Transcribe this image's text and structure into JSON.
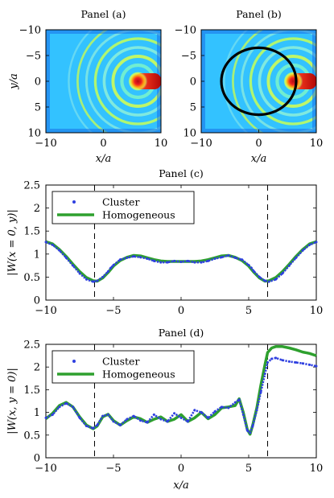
{
  "chart_data": [
    {
      "id": "a",
      "type": "heatmap",
      "title": "Panel (a)",
      "xlabel": "x/a",
      "ylabel": "y/a",
      "xlim": [
        -10,
        10
      ],
      "ylim": [
        -10,
        10
      ],
      "y_direction": "reversed",
      "xticks": [
        "−10",
        "0",
        "10"
      ],
      "yticks": [
        "−10",
        "−5",
        "0",
        "5",
        "10"
      ],
      "colormap": "jet",
      "source_x": 6,
      "scatterer_boundary": "cluster"
    },
    {
      "id": "b",
      "type": "heatmap",
      "title": "Panel (b)",
      "xlabel": "x/a",
      "ylabel": "",
      "xlim": [
        -10,
        10
      ],
      "ylim": [
        -10,
        10
      ],
      "y_direction": "reversed",
      "xticks": [
        "−10",
        "0",
        "10"
      ],
      "yticks": [
        "−10",
        "−5",
        "0",
        "5",
        "10"
      ],
      "colormap": "jet",
      "source_x": 6,
      "overlay": {
        "shape": "circle",
        "center": [
          0,
          0
        ],
        "radius": 6.5,
        "color": "#000000"
      }
    },
    {
      "id": "c",
      "type": "line",
      "title": "Panel (c)",
      "xlabel": "",
      "ylabel": "|W(x = 0, y)|",
      "xlim": [
        -10,
        10
      ],
      "ylim": [
        0,
        2.5
      ],
      "xticks": [
        "−10",
        "−5",
        "0",
        "5",
        "10"
      ],
      "yticks": [
        "0",
        "0.5",
        "1",
        "1.5",
        "2",
        "2.5"
      ],
      "legend_position": "top-left",
      "vlines": [
        -6.4,
        6.4
      ],
      "series": [
        {
          "name": "Cluster",
          "style": "dots",
          "color": "#2e3fe0",
          "x": [
            -10,
            -9.5,
            -9,
            -8.5,
            -8,
            -7.5,
            -7,
            -6.5,
            -6.2,
            -5.8,
            -5.4,
            -5.2,
            -5,
            -4.5,
            -4,
            -3.5,
            -3,
            -2.5,
            -2,
            -1.5,
            -1,
            -0.5,
            0,
            0.5,
            1,
            1.5,
            2,
            2.5,
            3,
            3.5,
            4,
            4.5,
            5,
            5.2,
            5.4,
            5.8,
            6.2,
            6.5,
            7,
            7.5,
            8,
            8.5,
            9,
            9.5,
            10
          ],
          "y": [
            1.26,
            1.2,
            1.08,
            0.92,
            0.75,
            0.58,
            0.45,
            0.4,
            0.42,
            0.5,
            0.62,
            0.7,
            0.76,
            0.88,
            0.92,
            0.95,
            0.93,
            0.9,
            0.85,
            0.82,
            0.82,
            0.85,
            0.83,
            0.85,
            0.82,
            0.82,
            0.85,
            0.9,
            0.93,
            0.97,
            0.92,
            0.88,
            0.76,
            0.7,
            0.62,
            0.5,
            0.42,
            0.4,
            0.45,
            0.58,
            0.75,
            0.92,
            1.08,
            1.2,
            1.26
          ]
        },
        {
          "name": "Homogeneous",
          "style": "line",
          "color": "#2ea02e",
          "x": [
            -10,
            -9.5,
            -9,
            -8.5,
            -8,
            -7.5,
            -7,
            -6.5,
            -6.2,
            -5.8,
            -5.4,
            -5,
            -4.5,
            -4,
            -3.5,
            -3,
            -2.5,
            -2,
            -1.5,
            -1,
            -0.5,
            0,
            0.5,
            1,
            1.5,
            2,
            2.5,
            3,
            3.5,
            4,
            4.5,
            5,
            5.4,
            5.8,
            6.2,
            6.5,
            7,
            7.5,
            8,
            8.5,
            9,
            9.5,
            10
          ],
          "y": [
            1.27,
            1.22,
            1.1,
            0.95,
            0.78,
            0.62,
            0.49,
            0.42,
            0.41,
            0.48,
            0.6,
            0.74,
            0.86,
            0.93,
            0.97,
            0.96,
            0.92,
            0.88,
            0.85,
            0.84,
            0.84,
            0.84,
            0.84,
            0.84,
            0.85,
            0.88,
            0.92,
            0.96,
            0.97,
            0.93,
            0.86,
            0.74,
            0.6,
            0.48,
            0.41,
            0.42,
            0.49,
            0.62,
            0.78,
            0.95,
            1.1,
            1.22,
            1.27
          ]
        }
      ]
    },
    {
      "id": "d",
      "type": "line",
      "title": "Panel (d)",
      "xlabel": "x/a",
      "ylabel": "|W(x, y = 0)|",
      "xlim": [
        -10,
        10
      ],
      "ylim": [
        0,
        2.5
      ],
      "xticks": [
        "−10",
        "−5",
        "0",
        "5",
        "10"
      ],
      "yticks": [
        "0",
        "0.5",
        "1",
        "1.5",
        "2",
        "2.5"
      ],
      "legend_position": "top-left",
      "vlines": [
        -6.4,
        6.4
      ],
      "series": [
        {
          "name": "Cluster",
          "style": "dots",
          "color": "#2e3fe0",
          "x": [
            -10,
            -9.5,
            -9,
            -8.5,
            -8,
            -7.5,
            -7,
            -6.5,
            -6.2,
            -5.8,
            -5.4,
            -5,
            -4.5,
            -4,
            -3.5,
            -3,
            -2.5,
            -2,
            -1.5,
            -1,
            -0.5,
            0,
            0.5,
            1,
            1.5,
            2,
            2.5,
            3,
            3.5,
            4,
            4.3,
            4.6,
            4.9,
            5.1,
            5.3,
            5.6,
            5.9,
            6.2,
            6.4,
            6.7,
            7,
            7.5,
            8,
            8.5,
            9,
            9.5,
            10
          ],
          "y": [
            0.88,
            0.95,
            1.12,
            1.2,
            1.12,
            0.88,
            0.7,
            0.65,
            0.72,
            0.92,
            0.95,
            0.8,
            0.72,
            0.85,
            0.92,
            0.82,
            0.78,
            0.95,
            0.85,
            0.8,
            0.98,
            0.88,
            0.8,
            1.05,
            1.0,
            0.88,
            1.02,
            1.12,
            1.1,
            1.22,
            1.28,
            0.95,
            0.6,
            0.55,
            0.7,
            1.05,
            1.45,
            1.85,
            2.1,
            2.18,
            2.2,
            2.15,
            2.12,
            2.1,
            2.08,
            2.05,
            2.02
          ]
        },
        {
          "name": "Homogeneous",
          "style": "line",
          "color": "#2ea02e",
          "x": [
            -10,
            -9.5,
            -9,
            -8.5,
            -8,
            -7.5,
            -7,
            -6.5,
            -6.2,
            -5.8,
            -5.4,
            -5,
            -4.5,
            -4,
            -3.5,
            -3,
            -2.5,
            -2,
            -1.5,
            -1,
            -0.5,
            0,
            0.5,
            1,
            1.5,
            2,
            2.5,
            3,
            3.5,
            4,
            4.3,
            4.6,
            4.9,
            5.1,
            5.3,
            5.6,
            5.9,
            6.2,
            6.4,
            6.7,
            7,
            7.5,
            8,
            8.5,
            9,
            9.5,
            10
          ],
          "y": [
            0.86,
            0.98,
            1.15,
            1.22,
            1.12,
            0.9,
            0.72,
            0.64,
            0.7,
            0.9,
            0.96,
            0.82,
            0.72,
            0.82,
            0.9,
            0.86,
            0.78,
            0.85,
            0.9,
            0.8,
            0.85,
            0.95,
            0.8,
            0.88,
            1.0,
            0.86,
            0.95,
            1.1,
            1.12,
            1.15,
            1.3,
            1.0,
            0.62,
            0.52,
            0.72,
            1.1,
            1.6,
            2.05,
            2.32,
            2.42,
            2.45,
            2.45,
            2.42,
            2.38,
            2.33,
            2.3,
            2.25
          ]
        }
      ]
    }
  ]
}
